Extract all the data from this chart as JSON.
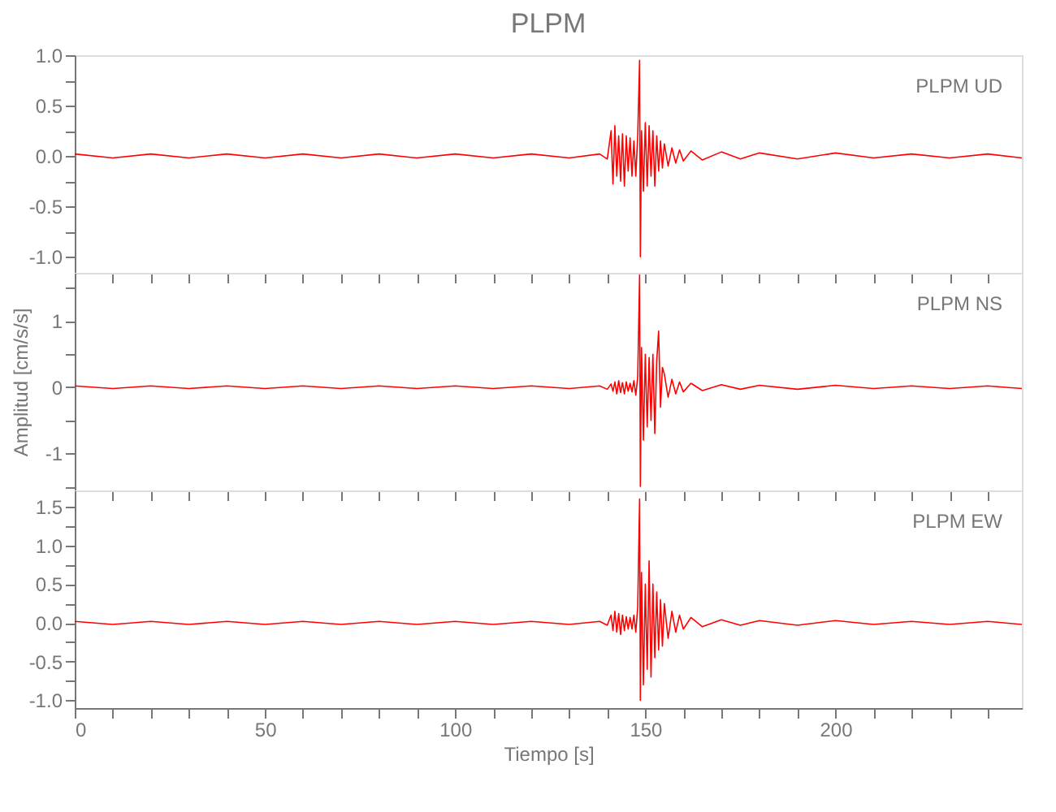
{
  "chart_data": [
    {
      "type": "line",
      "title": "PLPM",
      "annotations": [
        "PLPM   UD"
      ],
      "tick_labels": "y",
      "grid": false,
      "marker": "none",
      "line_style": "solid",
      "x": [
        0,
        10,
        20,
        30,
        40,
        50,
        60,
        70,
        80,
        90,
        100,
        110,
        120,
        130,
        138,
        140,
        141,
        141.5,
        142,
        142.5,
        143,
        143.5,
        144,
        144.5,
        145,
        145.5,
        146,
        146.5,
        147,
        147.5,
        148,
        148.5,
        148.7,
        149,
        149.5,
        150,
        150.5,
        151,
        151.5,
        152,
        152.5,
        153,
        153.5,
        154,
        154.5,
        155,
        156,
        157,
        158,
        159,
        160,
        162,
        165,
        170,
        175,
        180,
        190,
        200,
        210,
        220,
        230,
        240,
        249
      ],
      "series": [
        {
          "color": "#ff0000",
          "values": [
            0.02,
            -0.02,
            0.02,
            -0.02,
            0.02,
            -0.02,
            0.02,
            -0.02,
            0.02,
            -0.02,
            0.02,
            -0.02,
            0.02,
            -0.02,
            0.02,
            -0.03,
            0.25,
            -0.28,
            0.3,
            -0.2,
            0.2,
            -0.25,
            0.22,
            -0.3,
            0.2,
            -0.15,
            0.18,
            -0.2,
            0.15,
            -0.2,
            0.2,
            0.95,
            -1.0,
            0.25,
            -0.35,
            0.33,
            -0.3,
            0.3,
            -0.2,
            0.25,
            -0.3,
            0.2,
            -0.15,
            0.15,
            -0.12,
            0.12,
            -0.1,
            0.08,
            -0.07,
            0.06,
            -0.05,
            0.05,
            -0.04,
            0.04,
            -0.03,
            0.03,
            -0.03,
            0.03,
            -0.02,
            0.02,
            -0.02,
            0.02,
            -0.02
          ]
        }
      ],
      "xlim": [
        0,
        249
      ],
      "xticks": [
        0,
        {
          "value": 10,
          "label": null
        },
        {
          "value": 20,
          "label": null
        },
        {
          "value": 30,
          "label": null
        },
        {
          "value": 40,
          "label": null
        },
        50,
        {
          "value": 60,
          "label": null
        },
        {
          "value": 70,
          "label": null
        },
        {
          "value": 80,
          "label": null
        },
        {
          "value": 90,
          "label": null
        },
        100,
        {
          "value": 110,
          "label": null
        },
        {
          "value": 120,
          "label": null
        },
        {
          "value": 130,
          "label": null
        },
        {
          "value": 140,
          "label": null
        },
        150,
        {
          "value": 160,
          "label": null
        },
        {
          "value": 170,
          "label": null
        },
        {
          "value": 180,
          "label": null
        },
        {
          "value": 190,
          "label": null
        },
        200,
        {
          "value": 210,
          "label": null
        },
        {
          "value": 220,
          "label": null
        },
        {
          "value": 230,
          "label": null
        },
        {
          "value": 240,
          "label": null
        }
      ],
      "ylim": [
        -1.16,
        1.0
      ],
      "yticks": [
        {
          "value": 1,
          "label": "1.0"
        },
        {
          "value": 0.75,
          "label": null
        },
        {
          "value": 0.5,
          "label": "0.5"
        },
        {
          "value": 0.25,
          "label": null
        },
        {
          "value": 0,
          "label": "0.0"
        },
        {
          "value": -0.25,
          "label": null
        },
        {
          "value": -0.5,
          "label": "-0.5"
        },
        {
          "value": -0.75,
          "label": null
        },
        {
          "value": -1,
          "label": "-1.0"
        }
      ]
    },
    {
      "type": "line",
      "ylabel": "Amplitud [cm/s/s]",
      "annotations": [
        "PLPM   NS"
      ],
      "tick_labels": "y",
      "grid": false,
      "marker": "none",
      "line_style": "solid",
      "x": [
        0,
        10,
        20,
        30,
        40,
        50,
        60,
        70,
        80,
        90,
        100,
        110,
        120,
        130,
        138,
        140,
        141,
        141.5,
        142,
        142.5,
        143,
        143.5,
        144,
        144.5,
        145,
        145.5,
        146,
        146.5,
        147,
        147.5,
        148,
        148.5,
        148.7,
        149,
        149.5,
        150,
        150.5,
        151,
        151.5,
        152,
        152.5,
        153,
        153.5,
        154,
        154.5,
        155,
        156,
        157,
        158,
        159,
        160,
        162,
        165,
        170,
        175,
        180,
        190,
        200,
        210,
        220,
        230,
        240,
        249
      ],
      "series": [
        {
          "color": "#ff0000",
          "values": [
            0.02,
            -0.02,
            0.02,
            -0.02,
            0.02,
            -0.02,
            0.02,
            -0.02,
            0.02,
            -0.02,
            0.02,
            -0.02,
            0.02,
            -0.02,
            0.02,
            -0.03,
            0.05,
            -0.06,
            0.08,
            -0.1,
            0.1,
            -0.08,
            0.07,
            -0.1,
            0.08,
            -0.06,
            0.06,
            -0.07,
            0.1,
            -0.12,
            0.15,
            1.7,
            -1.5,
            0.6,
            -0.8,
            0.5,
            -0.6,
            0.45,
            -0.5,
            0.5,
            -0.7,
            0.4,
            0.85,
            -0.3,
            0.3,
            0.2,
            -0.15,
            0.12,
            -0.1,
            0.08,
            -0.07,
            0.06,
            -0.05,
            0.04,
            -0.03,
            0.03,
            -0.03,
            0.03,
            -0.02,
            0.02,
            -0.02,
            0.02,
            -0.02
          ]
        }
      ],
      "xlim": [
        0,
        249
      ],
      "xticks": [
        0,
        {
          "value": 10,
          "label": null
        },
        {
          "value": 20,
          "label": null
        },
        {
          "value": 30,
          "label": null
        },
        {
          "value": 40,
          "label": null
        },
        50,
        {
          "value": 60,
          "label": null
        },
        {
          "value": 70,
          "label": null
        },
        {
          "value": 80,
          "label": null
        },
        {
          "value": 90,
          "label": null
        },
        100,
        {
          "value": 110,
          "label": null
        },
        {
          "value": 120,
          "label": null
        },
        {
          "value": 130,
          "label": null
        },
        {
          "value": 140,
          "label": null
        },
        150,
        {
          "value": 160,
          "label": null
        },
        {
          "value": 170,
          "label": null
        },
        {
          "value": 180,
          "label": null
        },
        {
          "value": 190,
          "label": null
        },
        200,
        {
          "value": 210,
          "label": null
        },
        {
          "value": 220,
          "label": null
        },
        {
          "value": 230,
          "label": null
        },
        {
          "value": 240,
          "label": null
        }
      ],
      "ylim": [
        -1.56,
        1.73
      ],
      "yticks": [
        {
          "value": 1.5,
          "label": null
        },
        1,
        {
          "value": 0.5,
          "label": null
        },
        0,
        {
          "value": -0.5,
          "label": null
        },
        -1,
        {
          "value": -1.5,
          "label": null
        }
      ]
    },
    {
      "type": "line",
      "xlabel": "Tiempo [s]",
      "annotations": [
        "PLPM   EW"
      ],
      "grid": false,
      "marker": "none",
      "line_style": "solid",
      "x": [
        0,
        10,
        20,
        30,
        40,
        50,
        60,
        70,
        80,
        90,
        100,
        110,
        120,
        130,
        138,
        140,
        141,
        141.5,
        142,
        142.5,
        143,
        143.5,
        144,
        144.5,
        145,
        145.5,
        146,
        146.5,
        147,
        147.5,
        148,
        148.5,
        148.7,
        149,
        149.5,
        150,
        150.5,
        151,
        151.5,
        152,
        152.5,
        153,
        153.5,
        154,
        154.5,
        155,
        156,
        157,
        158,
        159,
        160,
        162,
        165,
        170,
        175,
        180,
        190,
        200,
        210,
        220,
        230,
        240,
        249
      ],
      "series": [
        {
          "color": "#ff0000",
          "values": [
            0.02,
            -0.02,
            0.02,
            -0.02,
            0.02,
            -0.02,
            0.02,
            -0.02,
            0.02,
            -0.02,
            0.02,
            -0.02,
            0.02,
            -0.02,
            0.02,
            -0.03,
            0.1,
            -0.1,
            0.15,
            -0.12,
            0.12,
            -0.15,
            0.1,
            -0.1,
            0.08,
            -0.08,
            0.07,
            -0.08,
            0.1,
            -0.12,
            0.2,
            1.6,
            -1.0,
            0.65,
            -0.8,
            0.5,
            -0.6,
            0.8,
            -0.7,
            0.5,
            -0.45,
            0.4,
            -0.35,
            0.3,
            -0.3,
            0.25,
            -0.2,
            0.15,
            -0.12,
            0.1,
            -0.08,
            0.07,
            -0.05,
            0.04,
            -0.03,
            0.03,
            -0.03,
            0.03,
            -0.02,
            0.02,
            -0.02,
            0.02,
            -0.02
          ]
        }
      ],
      "xlim": [
        0,
        249
      ],
      "xticks": [
        0,
        {
          "value": 10,
          "label": null
        },
        {
          "value": 20,
          "label": null
        },
        {
          "value": 30,
          "label": null
        },
        {
          "value": 40,
          "label": null
        },
        50,
        {
          "value": 60,
          "label": null
        },
        {
          "value": 70,
          "label": null
        },
        {
          "value": 80,
          "label": null
        },
        {
          "value": 90,
          "label": null
        },
        100,
        {
          "value": 110,
          "label": null
        },
        {
          "value": 120,
          "label": null
        },
        {
          "value": 130,
          "label": null
        },
        {
          "value": 140,
          "label": null
        },
        150,
        {
          "value": 160,
          "label": null
        },
        {
          "value": 170,
          "label": null
        },
        {
          "value": 180,
          "label": null
        },
        {
          "value": 190,
          "label": null
        },
        200,
        {
          "value": 210,
          "label": null
        },
        {
          "value": 220,
          "label": null
        },
        {
          "value": 230,
          "label": null
        },
        {
          "value": 240,
          "label": null
        }
      ],
      "ylim": [
        -1.1,
        1.71
      ],
      "yticks": [
        {
          "value": 1.5,
          "label": "1.5"
        },
        {
          "value": 1.25,
          "label": null
        },
        {
          "value": 1,
          "label": "1.0"
        },
        {
          "value": 0.75,
          "label": null
        },
        {
          "value": 0.5,
          "label": "0.5"
        },
        {
          "value": 0.25,
          "label": null
        },
        {
          "value": 0,
          "label": "0.0"
        },
        {
          "value": -0.25,
          "label": null
        },
        {
          "value": -0.5,
          "label": "-0.5"
        },
        {
          "value": -0.75,
          "label": null
        },
        {
          "value": -1,
          "label": "-1.0"
        }
      ]
    }
  ]
}
